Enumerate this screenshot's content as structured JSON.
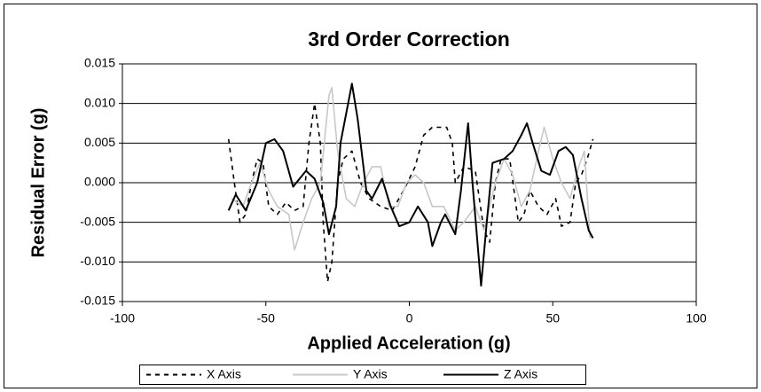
{
  "chart_data": {
    "type": "line",
    "title": "3rd Order Correction",
    "x_label": "Applied Acceleration (g)",
    "y_label": "Residual Error (g)",
    "xlim": [
      -100,
      100
    ],
    "xticks": [
      -100,
      -50,
      0,
      50,
      100
    ],
    "ylim": [
      -0.015,
      0.015
    ],
    "yticks": [
      -0.015,
      {
        "value": -0.01,
        "label": "-0.010"
      },
      -0.005,
      {
        "value": 0,
        "label": "0.000"
      },
      0.005,
      {
        "value": 0.01,
        "label": "0.010"
      },
      0.015
    ],
    "grid": true,
    "legend": "bottom",
    "series": [
      {
        "name": "X Axis",
        "color": "#000000",
        "dash": "dashed",
        "x": [
          -63,
          -61,
          -59,
          -57,
          -55,
          -53,
          -51,
          -49,
          -46,
          -43,
          -40,
          -37,
          -35,
          -33,
          -31,
          -30,
          -28.5,
          -27,
          -25,
          -23,
          -20,
          -17,
          -14,
          -10,
          -6,
          -2,
          2,
          5,
          8,
          13,
          15,
          16,
          19,
          23,
          26,
          28,
          30,
          32,
          35,
          38,
          40,
          42,
          45,
          48,
          51,
          53,
          56,
          58,
          60,
          62,
          64
        ],
        "values": [
          0.0055,
          0.0,
          -0.005,
          -0.004,
          0.0,
          0.003,
          0.0025,
          -0.003,
          -0.004,
          -0.0025,
          -0.0035,
          -0.003,
          0.005,
          0.01,
          0.005,
          -0.005,
          -0.0125,
          -0.01,
          0.0,
          0.003,
          0.004,
          0.0,
          -0.002,
          -0.003,
          -0.0035,
          -0.001,
          0.002,
          0.006,
          0.007,
          0.007,
          0.005,
          0.0,
          0.002,
          0.0015,
          -0.006,
          -0.0075,
          0.0,
          0.003,
          0.003,
          -0.005,
          -0.004,
          -0.001,
          -0.003,
          -0.004,
          -0.002,
          -0.0055,
          -0.005,
          0.0,
          0.001,
          0.003,
          0.0055
        ]
      },
      {
        "name": "Y Axis",
        "color": "#c8c8c8",
        "dash": "solid",
        "x": [
          -62,
          -58,
          -55,
          -52,
          -49,
          -46,
          -42,
          -40,
          -37,
          -34,
          -31,
          -28,
          -27,
          -25,
          -22,
          -19,
          -16,
          -13,
          -10,
          -7,
          -4,
          -1,
          2,
          5,
          8,
          12,
          16,
          19,
          23,
          26,
          30,
          33,
          36,
          39,
          42,
          45,
          47,
          50,
          53,
          56,
          59,
          61,
          63
        ],
        "values": [
          -0.002,
          -0.003,
          0.0,
          0.0025,
          -0.001,
          -0.003,
          -0.004,
          -0.0085,
          -0.005,
          -0.002,
          0.0,
          0.011,
          0.012,
          0.004,
          -0.002,
          -0.003,
          0.0,
          0.002,
          0.002,
          -0.003,
          -0.003,
          0.0,
          0.001,
          0.0,
          -0.003,
          -0.003,
          -0.006,
          -0.005,
          -0.003,
          -0.006,
          0.0,
          0.003,
          0.001,
          -0.003,
          -0.001,
          0.004,
          0.007,
          0.003,
          0.0,
          -0.002,
          0.002,
          0.004,
          -0.007
        ]
      },
      {
        "name": "Z Axis",
        "color": "#000000",
        "dash": "solid",
        "x": [
          -63,
          -60.5,
          -57,
          -53,
          -50,
          -47,
          -44,
          -40.5,
          -36,
          -33,
          -30,
          -28,
          -25.5,
          -24,
          -20,
          -18,
          -15,
          -13,
          -9.5,
          -6.5,
          -3.5,
          0,
          3,
          6.5,
          8,
          11,
          12.5,
          16,
          18,
          20.5,
          22,
          25,
          27,
          29,
          33,
          36,
          39,
          41,
          43,
          46,
          49,
          52,
          54.5,
          57,
          60,
          62.5,
          64
        ],
        "values": [
          -0.0035,
          -0.0015,
          -0.0035,
          0.0,
          0.005,
          0.0055,
          0.004,
          -0.0005,
          0.0015,
          0.0005,
          -0.0025,
          -0.0065,
          -0.003,
          0.005,
          0.0125,
          0.008,
          -0.001,
          -0.002,
          0.0005,
          -0.003,
          -0.0055,
          -0.005,
          -0.003,
          -0.005,
          -0.008,
          -0.005,
          -0.004,
          -0.0065,
          -0.001,
          0.0075,
          0.0,
          -0.013,
          -0.005,
          0.0025,
          0.003,
          0.004,
          0.006,
          0.0075,
          0.005,
          0.0015,
          0.001,
          0.004,
          0.0045,
          0.0035,
          -0.002,
          -0.006,
          -0.007
        ]
      }
    ]
  }
}
